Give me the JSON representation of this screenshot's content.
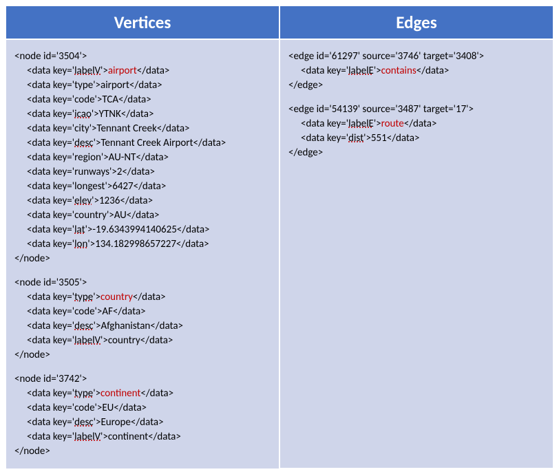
{
  "table": {
    "header_bg": "#4472c4",
    "header_color": "#ffffff",
    "body_bg": "#cfd5ea",
    "border_color": "#ffffff",
    "highlight_color": "#c00000",
    "header_fontsize": 25,
    "body_fontsize": 15
  },
  "columns": {
    "vertices": {
      "title": "Vertices"
    },
    "edges": {
      "title": "Edges"
    }
  },
  "vertices": [
    {
      "open": "<node id='3504'>",
      "close": "</node>",
      "rows": [
        {
          "k": "labelV",
          "v": "airport",
          "hl": true,
          "u": true
        },
        {
          "k": "type",
          "v": "airport",
          "hl": false,
          "u": false
        },
        {
          "k": "code",
          "v": "TCA",
          "hl": false,
          "u": false
        },
        {
          "k": "icao",
          "v": "YTNK",
          "hl": false,
          "u": true
        },
        {
          "k": "city",
          "v": "Tennant Creek",
          "hl": false,
          "u": false
        },
        {
          "k": "desc",
          "v": "Tennant Creek Airport",
          "hl": false,
          "u": true
        },
        {
          "k": "region",
          "v": "AU-NT",
          "hl": false,
          "u": false
        },
        {
          "k": "runways",
          "v": "2",
          "hl": false,
          "u": false
        },
        {
          "k": "longest",
          "v": "6427",
          "hl": false,
          "u": false
        },
        {
          "k": "elev",
          "v": "1236",
          "hl": false,
          "u": true
        },
        {
          "k": "country",
          "v": "AU",
          "hl": false,
          "u": false
        },
        {
          "k": "lat",
          "v": "-19.6343994140625",
          "hl": false,
          "u": true
        },
        {
          "k": "lon",
          "v": "134.182998657227",
          "hl": false,
          "u": true
        }
      ]
    },
    {
      "open": "<node id='3505'>",
      "close": "</node>",
      "rows": [
        {
          "k": "type",
          "v": "country",
          "hl": true,
          "u": true
        },
        {
          "k": "code",
          "v": "AF",
          "hl": false,
          "u": false
        },
        {
          "k": "desc",
          "v": "Afghanistan",
          "hl": false,
          "u": true
        },
        {
          "k": "labelV",
          "v": "country",
          "hl": false,
          "u": true
        }
      ]
    },
    {
      "open": "<node id='3742'>",
      "close": "</node>",
      "rows": [
        {
          "k": "type",
          "v": "continent",
          "hl": true,
          "u": true
        },
        {
          "k": "code",
          "v": "EU",
          "hl": false,
          "u": false
        },
        {
          "k": "desc",
          "v": "Europe",
          "hl": false,
          "u": true
        },
        {
          "k": "labelV",
          "v": "continent",
          "hl": false,
          "u": true
        }
      ]
    }
  ],
  "edges": [
    {
      "open": "<edge id='61297' source='3746' target='3408'>",
      "close": "</edge>",
      "rows": [
        {
          "k": "labelE",
          "v": "contains",
          "hl": true,
          "u": true
        }
      ]
    },
    {
      "open": "<edge id='54139' source='3487' target='17'>",
      "close": "</edge>",
      "rows": [
        {
          "k": "labelE",
          "v": "route",
          "hl": true,
          "u": true
        },
        {
          "k": "dist",
          "v": "551",
          "hl": false,
          "u": true
        }
      ]
    }
  ]
}
